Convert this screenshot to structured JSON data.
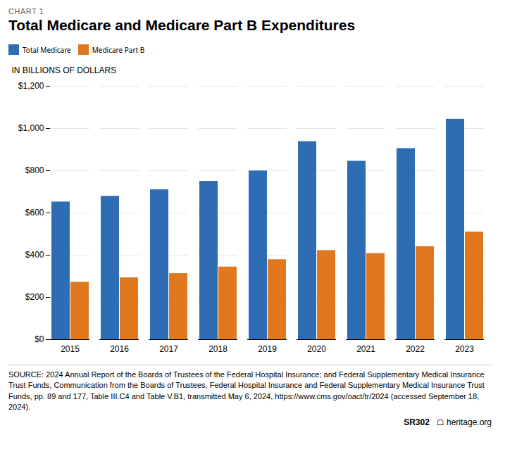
{
  "chart_data": {
    "type": "bar",
    "title": "Total Medicare and Medicare Part B Expenditures",
    "ylabel": "IN BILLIONS OF DOLLARS",
    "categories": [
      "2015",
      "2016",
      "2017",
      "2018",
      "2019",
      "2020",
      "2021",
      "2022",
      "2023"
    ],
    "series": [
      {
        "name": "Total Medicare",
        "color": "#2E6DB4",
        "values": [
          652,
          679,
          710,
          750,
          799,
          938,
          845,
          905,
          1044
        ]
      },
      {
        "name": "Medicare Part B",
        "color": "#E07820",
        "values": [
          272,
          293,
          313,
          344,
          379,
          422,
          408,
          441,
          510
        ]
      }
    ],
    "ylim": [
      0,
      1200
    ],
    "yticks": [
      {
        "value": 0,
        "label": "$0"
      },
      {
        "value": 200,
        "label": "$200"
      },
      {
        "value": 400,
        "label": "$400"
      },
      {
        "value": 600,
        "label": "$600"
      },
      {
        "value": 800,
        "label": "$800"
      },
      {
        "value": 1000,
        "label": "$1,000"
      },
      {
        "value": 1200,
        "label": "$1,200"
      }
    ],
    "grid": true,
    "legend": "top",
    "annotations": [
      "CHART 1",
      "SOURCE: 2024 Annual Report of the Boards of Trustees of the Federal Hospital Insurance; and Federal Supplementary Medical Insurance Trust Funds, Communication from the Boards of Trustees, Federal Hospital Insurance and Federal Supplementary Medical Insurance Trust Funds, pp. 89 and 177, Table III.C4 and Table V.B1, transmitted May 6, 2024, https://www.cms.gov/oact/tr/2024 (accessed September 18, 2024).",
      "SR302",
      "☖ heritage.org"
    ]
  }
}
